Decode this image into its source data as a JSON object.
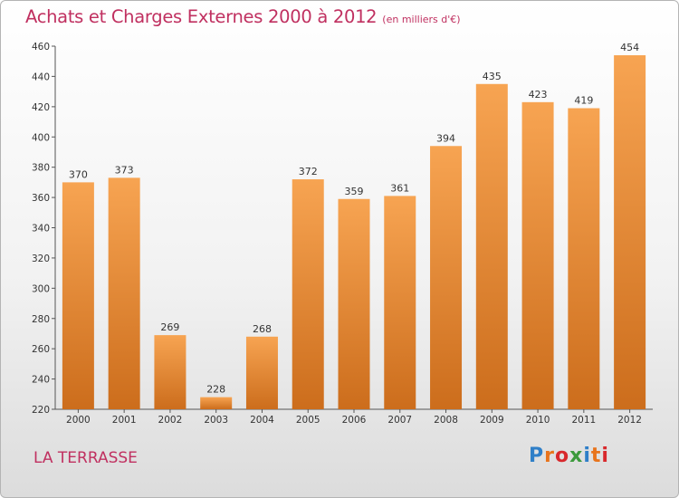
{
  "title": "Achats et Charges Externes 2000 à 2012",
  "unit": "(en milliers d'€)",
  "place": "LA TERRASSE",
  "logo": {
    "text": "Proxiti",
    "colors": [
      "#2f7fc8",
      "#e8741c",
      "#d8282c",
      "#3c9a3c",
      "#2f7fc8",
      "#e8741c",
      "#d8282c"
    ]
  },
  "colors": {
    "accent": "#c03060",
    "bar_light": "#f7a452",
    "bar_dark": "#cc6d1c"
  },
  "chart_data": {
    "type": "bar",
    "categories": [
      "2000",
      "2001",
      "2002",
      "2003",
      "2004",
      "2005",
      "2006",
      "2007",
      "2008",
      "2009",
      "2010",
      "2011",
      "2012"
    ],
    "values": [
      370,
      373,
      269,
      228,
      268,
      372,
      359,
      361,
      394,
      435,
      423,
      419,
      454
    ],
    "ylim": [
      220,
      460
    ],
    "yticks": [
      220,
      240,
      260,
      280,
      300,
      320,
      340,
      360,
      380,
      400,
      420,
      440,
      460
    ],
    "grid": false,
    "title": "Achats et Charges Externes 2000 à 2012",
    "xlabel": "",
    "ylabel": ""
  }
}
